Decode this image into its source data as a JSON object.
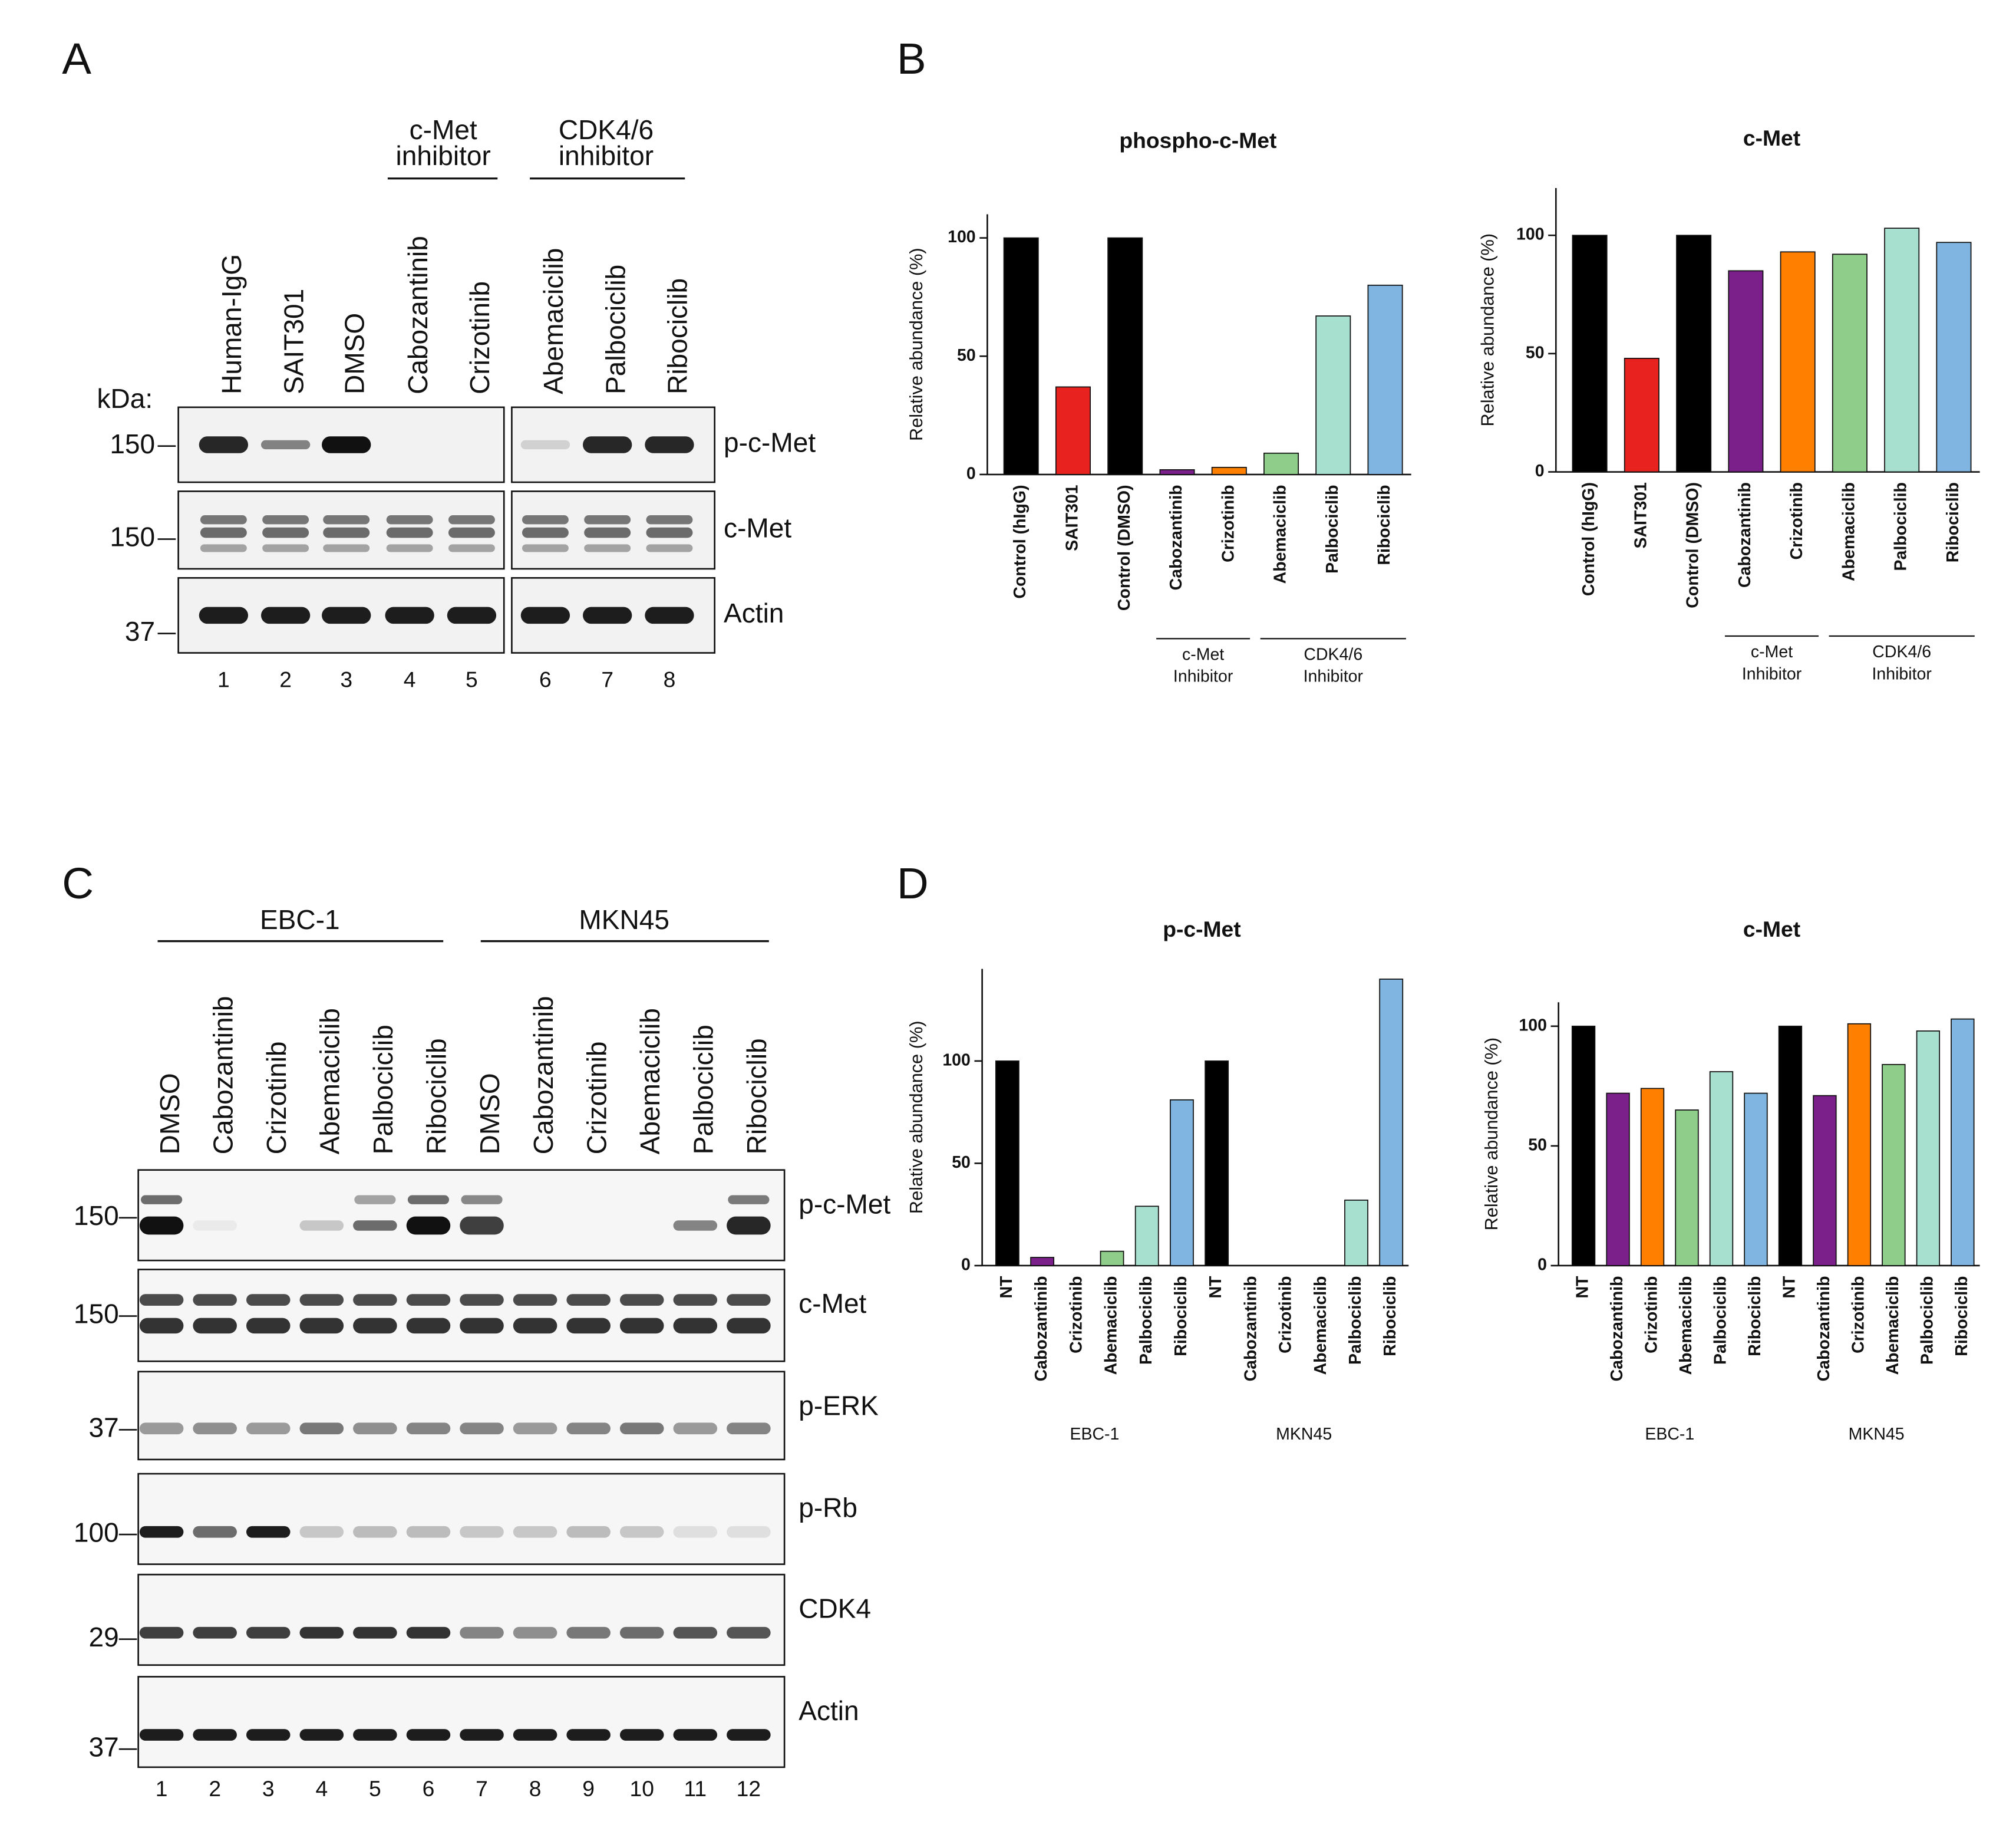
{
  "panel_labels": [
    "A",
    "B",
    "C",
    "D"
  ],
  "blot_a": {
    "groups": [
      {
        "lines": [
          "c-Met",
          "inhibitor"
        ]
      },
      {
        "lines": [
          "CDK4/6",
          "inhibitor"
        ]
      }
    ],
    "lanes": [
      "Human-IgG",
      "SAIT301",
      "DMSO",
      "Cabozantinib",
      "Crizotinib",
      "Abemaciclib",
      "Palbociclib",
      "Ribociclib"
    ],
    "lane_numbers": [
      1,
      2,
      3,
      4,
      5,
      6,
      7,
      8
    ],
    "kda_label": "kDa:",
    "rows": [
      {
        "name": "p-c-Met",
        "marker": "150"
      },
      {
        "name": "c-Met",
        "marker": "150"
      },
      {
        "name": "Actin",
        "marker": "37"
      }
    ]
  },
  "blot_c": {
    "groups": [
      "EBC-1",
      "MKN45"
    ],
    "lanes": [
      "DMSO",
      "Cabozantinib",
      "Crizotinib",
      "Abemaciclib",
      "Palbociclib",
      "Ribociclib",
      "DMSO",
      "Cabozantinib",
      "Crizotinib",
      "Abemaciclib",
      "Palbociclib",
      "Ribociclib"
    ],
    "lane_numbers": [
      1,
      2,
      3,
      4,
      5,
      6,
      7,
      8,
      9,
      10,
      11,
      12
    ],
    "rows": [
      {
        "name": "p-c-Met",
        "marker": "150"
      },
      {
        "name": "c-Met",
        "marker": "150"
      },
      {
        "name": "p-ERK",
        "marker": "37"
      },
      {
        "name": "p-Rb",
        "marker": "100"
      },
      {
        "name": "CDK4",
        "marker": "29"
      },
      {
        "name": "Actin",
        "marker": "37"
      }
    ]
  },
  "chart_data": [
    {
      "type": "bar",
      "title": "phospho-c-Met",
      "ylabel": "Relative abundance (%)",
      "categories": [
        "Control (hIgG)",
        "SAIT301",
        "Control (DMSO)",
        "Cabozantinib",
        "Crizotinib",
        "Abemaciclib",
        "Palbociclib",
        "Ribociclib"
      ],
      "values": [
        100,
        37,
        100,
        2,
        3,
        9,
        67,
        80
      ],
      "colors": [
        "#000000",
        "#e8231f",
        "#000000",
        "#7b1f8a",
        "#ff8000",
        "#8fce8a",
        "#a8e0d0",
        "#7fb5e0"
      ],
      "ylim": [
        0,
        110
      ],
      "yticks": [
        0,
        50,
        100
      ],
      "groups": [
        {
          "lines": [
            "c-Met",
            "Inhibitor"
          ]
        },
        {
          "lines": [
            "CDK4/6",
            "Inhibitor"
          ]
        }
      ]
    },
    {
      "type": "bar",
      "title": "c-Met",
      "ylabel": "Relative abundance (%)",
      "categories": [
        "Control (hIgG)",
        "SAIT301",
        "Control (DMSO)",
        "Cabozantinib",
        "Crizotinib",
        "Abemaciclib",
        "Palbociclib",
        "Ribociclib"
      ],
      "values": [
        100,
        48,
        100,
        85,
        93,
        92,
        103,
        97
      ],
      "colors": [
        "#000000",
        "#e8231f",
        "#000000",
        "#7b1f8a",
        "#ff8000",
        "#8fce8a",
        "#a8e0d0",
        "#7fb5e0"
      ],
      "ylim": [
        0,
        120
      ],
      "yticks": [
        0,
        50,
        100
      ],
      "groups": [
        {
          "lines": [
            "c-Met",
            "Inhibitor"
          ]
        },
        {
          "lines": [
            "CDK4/6",
            "Inhibitor"
          ]
        }
      ]
    },
    {
      "type": "bar",
      "title": "p-c-Met",
      "ylabel": "Relative abundance (%)",
      "categories": [
        "NT",
        "Cabozantinib",
        "Crizotinib",
        "Abemaciclib",
        "Palbociclib",
        "Ribociclib",
        "NT",
        "Cabozantinib",
        "Crizotinib",
        "Abemaciclib",
        "Palbociclib",
        "Ribociclib"
      ],
      "values": [
        100,
        4,
        0,
        7,
        29,
        81,
        100,
        0,
        0,
        0,
        32,
        140
      ],
      "colors": [
        "#000000",
        "#7b1f8a",
        "#ff8000",
        "#8fce8a",
        "#a8e0d0",
        "#7fb5e0",
        "#000000",
        "#7b1f8a",
        "#ff8000",
        "#8fce8a",
        "#a8e0d0",
        "#7fb5e0"
      ],
      "ylim": [
        0,
        145
      ],
      "yticks": [
        0,
        50,
        100
      ],
      "groups": [
        {
          "lines": [
            "EBC-1"
          ]
        },
        {
          "lines": [
            "MKN45"
          ]
        }
      ]
    },
    {
      "type": "bar",
      "title": "c-Met",
      "ylabel": "Relative abundance (%)",
      "categories": [
        "NT",
        "Cabozantinib",
        "Crizotinib",
        "Abemaciclib",
        "Palbociclib",
        "Ribociclib",
        "NT",
        "Cabozantinib",
        "Crizotinib",
        "Abemaciclib",
        "Palbociclib",
        "Ribociclib"
      ],
      "values": [
        100,
        72,
        74,
        65,
        81,
        72,
        100,
        71,
        101,
        84,
        98,
        103
      ],
      "colors": [
        "#000000",
        "#7b1f8a",
        "#ff8000",
        "#8fce8a",
        "#a8e0d0",
        "#7fb5e0",
        "#000000",
        "#7b1f8a",
        "#ff8000",
        "#8fce8a",
        "#a8e0d0",
        "#7fb5e0"
      ],
      "ylim": [
        0,
        110
      ],
      "yticks": [
        0,
        50,
        100
      ],
      "groups": [
        {
          "lines": [
            "EBC-1"
          ]
        },
        {
          "lines": [
            "MKN45"
          ]
        }
      ]
    }
  ]
}
